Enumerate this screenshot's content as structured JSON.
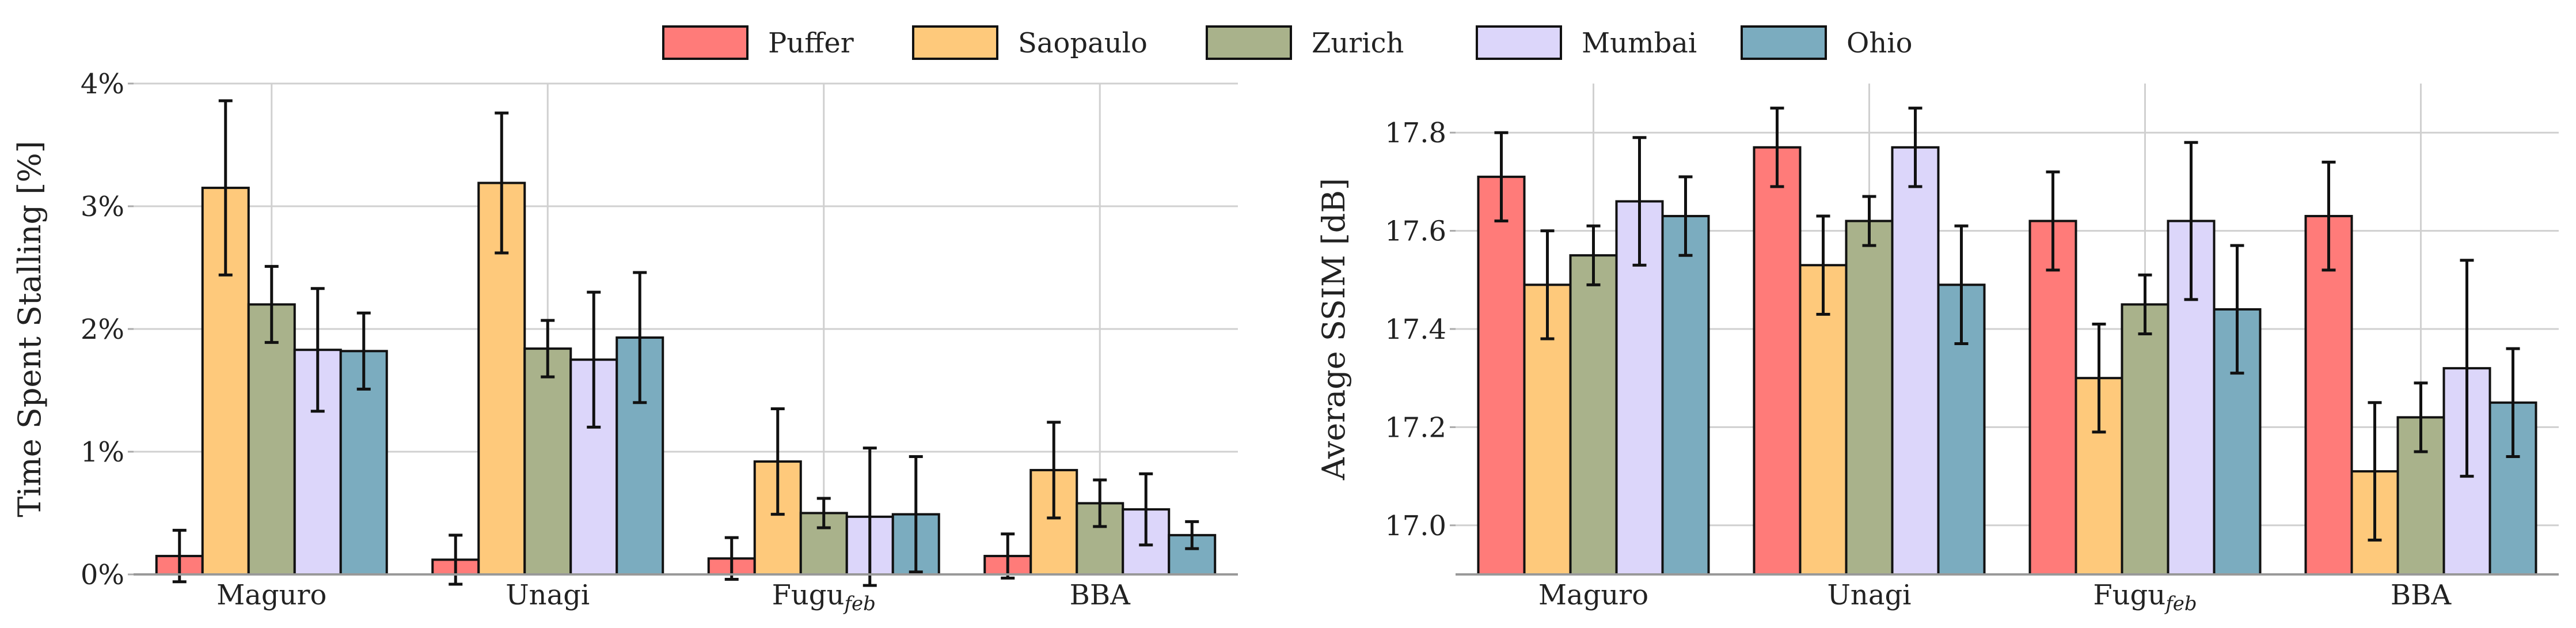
{
  "legend": {
    "entries": [
      "Puffer",
      "Saopaulo",
      "Zurich",
      "Mumbai",
      "Ohio"
    ],
    "colors": [
      "#ff7b79",
      "#fec97b",
      "#a9b28b",
      "#dcd6fa",
      "#7bacbf"
    ]
  },
  "chart_data": [
    {
      "type": "bar",
      "title": "",
      "xlabel": "",
      "ylabel": "Time Spent Stalling [%]",
      "ylim": [
        0,
        4
      ],
      "yticks": [
        0,
        1,
        2,
        3,
        4
      ],
      "ytick_labels": [
        "0%",
        "1%",
        "2%",
        "3%",
        "4%"
      ],
      "grid": true,
      "categories": [
        "Maguro",
        "Unagi",
        "Fugu_feb",
        "BBA"
      ],
      "category_display": [
        {
          "main": "Maguro",
          "sub": ""
        },
        {
          "main": "Unagi",
          "sub": ""
        },
        {
          "main": "Fugu",
          "sub": "feb"
        },
        {
          "main": "BBA",
          "sub": ""
        }
      ],
      "series": [
        {
          "name": "Puffer",
          "values": [
            0.15,
            0.12,
            0.13,
            0.15
          ],
          "err": [
            0.21,
            0.2,
            0.17,
            0.18
          ]
        },
        {
          "name": "Saopaulo",
          "values": [
            3.15,
            3.19,
            0.92,
            0.85
          ],
          "err": [
            0.71,
            0.57,
            0.43,
            0.39
          ]
        },
        {
          "name": "Zurich",
          "values": [
            2.2,
            1.84,
            0.5,
            0.58
          ],
          "err": [
            0.31,
            0.23,
            0.12,
            0.19
          ]
        },
        {
          "name": "Mumbai",
          "values": [
            1.83,
            1.75,
            0.47,
            0.53
          ],
          "err": [
            0.5,
            0.55,
            0.56,
            0.29
          ]
        },
        {
          "name": "Ohio",
          "values": [
            1.82,
            1.93,
            0.49,
            0.32
          ],
          "err": [
            0.31,
            0.53,
            0.47,
            0.11
          ]
        }
      ]
    },
    {
      "type": "bar",
      "title": "",
      "xlabel": "",
      "ylabel": "Average SSIM [dB]",
      "ylim": [
        16.9,
        17.9
      ],
      "yticks": [
        17.0,
        17.2,
        17.4,
        17.6,
        17.8
      ],
      "ytick_labels": [
        "17.0",
        "17.2",
        "17.4",
        "17.6",
        "17.8"
      ],
      "grid": true,
      "categories": [
        "Maguro",
        "Unagi",
        "Fugu_feb",
        "BBA"
      ],
      "category_display": [
        {
          "main": "Maguro",
          "sub": ""
        },
        {
          "main": "Unagi",
          "sub": ""
        },
        {
          "main": "Fugu",
          "sub": "feb"
        },
        {
          "main": "BBA",
          "sub": ""
        }
      ],
      "series": [
        {
          "name": "Puffer",
          "values": [
            17.71,
            17.77,
            17.62,
            17.63
          ],
          "err": [
            0.09,
            0.08,
            0.1,
            0.11
          ]
        },
        {
          "name": "Saopaulo",
          "values": [
            17.49,
            17.53,
            17.3,
            17.11
          ],
          "err": [
            0.11,
            0.1,
            0.11,
            0.14
          ]
        },
        {
          "name": "Zurich",
          "values": [
            17.55,
            17.62,
            17.45,
            17.22
          ],
          "err": [
            0.06,
            0.05,
            0.06,
            0.07
          ]
        },
        {
          "name": "Mumbai",
          "values": [
            17.66,
            17.77,
            17.62,
            17.32
          ],
          "err": [
            0.13,
            0.08,
            0.16,
            0.22
          ]
        },
        {
          "name": "Ohio",
          "values": [
            17.63,
            17.49,
            17.44,
            17.25
          ],
          "err": [
            0.08,
            0.12,
            0.13,
            0.11
          ]
        }
      ]
    }
  ]
}
